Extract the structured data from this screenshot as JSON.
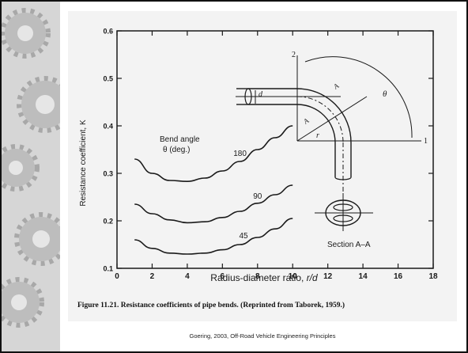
{
  "slide": {
    "caption": "Figure 11.21. Resistance coefficients of pipe bends. (Reprinted from Taborek, 1959.)",
    "footer": "Goering, 2003, Off-Road Vehicle Engineering Principles"
  },
  "chart_data": {
    "type": "line",
    "title": "",
    "xlabel": "Radius-diameter ratio, r/d",
    "ylabel": "Resistance coefficient, K",
    "xlim": [
      0,
      18
    ],
    "ylim": [
      0.1,
      0.6
    ],
    "x_ticks": [
      "0",
      "2",
      "4",
      "6",
      "8",
      "10",
      "12",
      "14",
      "16",
      "18"
    ],
    "y_ticks": [
      "0.1",
      "0.2",
      "0.3",
      "0.4",
      "0.5",
      "0.6"
    ],
    "grid": false,
    "legend_title": [
      "Bend angle",
      "θ (deg.)"
    ],
    "series": [
      {
        "name": "180",
        "x": [
          1,
          2,
          3,
          4,
          5,
          6,
          7,
          8,
          9,
          10
        ],
        "y": [
          0.33,
          0.3,
          0.285,
          0.283,
          0.29,
          0.305,
          0.325,
          0.35,
          0.375,
          0.4
        ]
      },
      {
        "name": "90",
        "x": [
          1,
          2,
          3,
          4,
          5,
          6,
          7,
          8,
          9,
          10
        ],
        "y": [
          0.235,
          0.215,
          0.202,
          0.196,
          0.198,
          0.207,
          0.22,
          0.237,
          0.255,
          0.275
        ]
      },
      {
        "name": "45",
        "x": [
          1,
          2,
          3,
          4,
          5,
          6,
          7,
          8,
          9,
          10
        ],
        "y": [
          0.16,
          0.142,
          0.132,
          0.13,
          0.132,
          0.139,
          0.15,
          0.165,
          0.183,
          0.205
        ]
      }
    ],
    "inset_labels": {
      "d": "d",
      "r": "r",
      "a": "A",
      "theta": "θ",
      "one": "1",
      "two": "2",
      "section": "Section A–A"
    },
    "colors": {
      "ink": "#1a1a1a",
      "paper": "#f3f3f3",
      "gear_band": "#d6d6d6"
    }
  }
}
